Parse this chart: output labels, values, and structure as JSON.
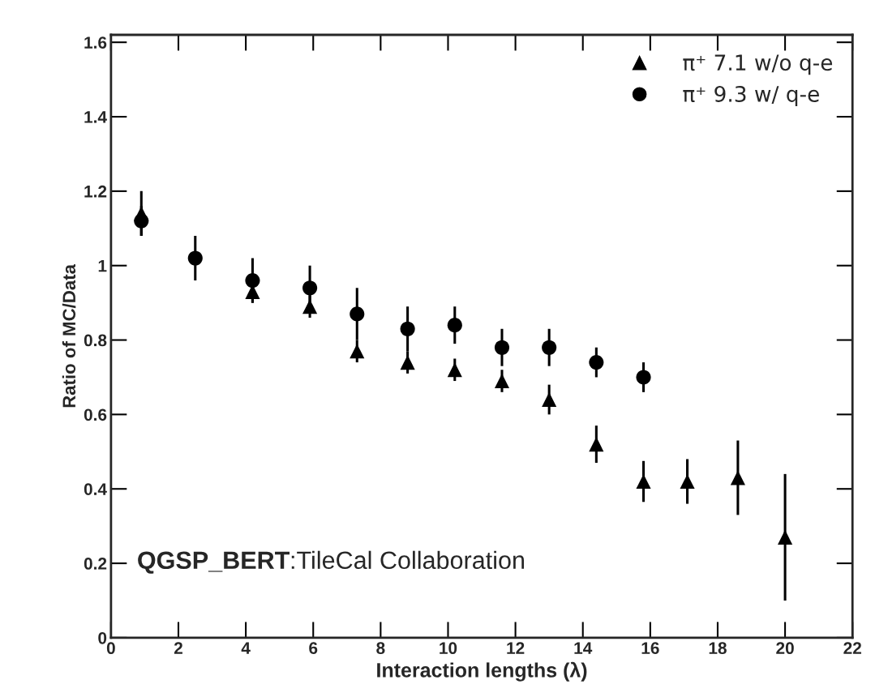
{
  "chart_data": {
    "type": "scatter",
    "xlabel": "Interaction lengths (λ)",
    "ylabel": "Ratio of MC/Data",
    "xlim": [
      0,
      22
    ],
    "xticks": [
      0,
      2,
      4,
      6,
      8,
      10,
      12,
      14,
      16,
      18,
      20,
      22
    ],
    "ylim": [
      0,
      1.62
    ],
    "yticks": [
      0,
      0.2,
      0.4,
      0.6,
      0.8,
      1,
      1.2,
      1.4,
      1.6
    ],
    "legend": "top right",
    "grid": false,
    "series": [
      {
        "name": "π⁺ 7.1 w/o q-e",
        "color": "#000000",
        "marker": "triangle",
        "x": [
          0.9,
          4.2,
          5.9,
          7.3,
          8.8,
          10.2,
          11.6,
          13.0,
          14.4,
          15.8,
          17.1,
          18.6,
          20.0
        ],
        "values": [
          1.14,
          0.93,
          0.89,
          0.77,
          0.74,
          0.72,
          0.69,
          0.64,
          0.52,
          0.42,
          0.42,
          0.43,
          0.27
        ],
        "errors": [
          0.06,
          0.03,
          0.03,
          0.03,
          0.03,
          0.03,
          0.03,
          0.04,
          0.05,
          0.055,
          0.06,
          0.1,
          0.17
        ]
      },
      {
        "name": "π⁺ 9.3 w/ q-e",
        "color": "#000000",
        "marker": "circle",
        "x": [
          0.9,
          2.5,
          4.2,
          5.9,
          7.3,
          8.8,
          10.2,
          11.6,
          13.0,
          14.4,
          15.8
        ],
        "values": [
          1.12,
          1.02,
          0.96,
          0.94,
          0.87,
          0.83,
          0.84,
          0.78,
          0.78,
          0.74,
          0.7
        ],
        "errors": [
          0.04,
          0.06,
          0.06,
          0.06,
          0.07,
          0.06,
          0.05,
          0.05,
          0.05,
          0.04,
          0.04
        ]
      }
    ],
    "annotations": [
      "QGSP_BERT:TileCal Collaboration"
    ]
  }
}
